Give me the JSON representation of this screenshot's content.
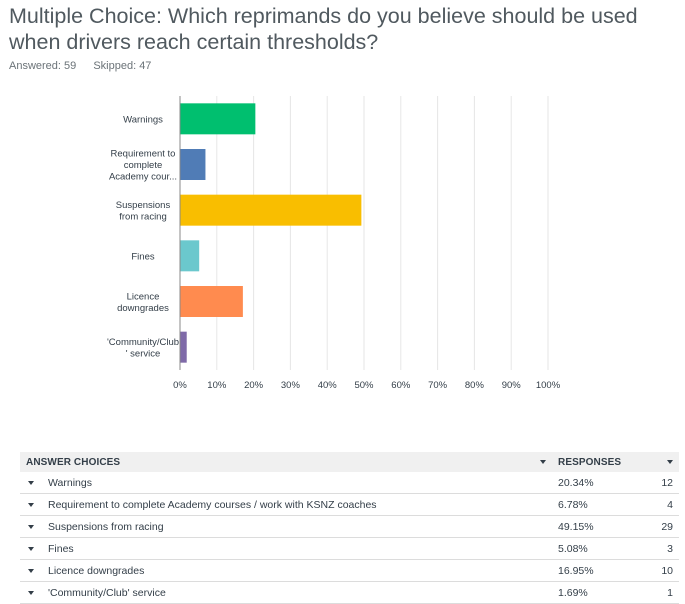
{
  "question": {
    "title": "Multiple Choice: Which reprimands do you believe should be used when drivers reach certain thresholds?",
    "answered": "Answered: 59",
    "skipped": "Skipped: 47"
  },
  "chart_data": {
    "type": "bar",
    "orientation": "horizontal",
    "categories": [
      [
        "Warnings"
      ],
      [
        "Requirement to",
        "complete",
        "Academy cour..."
      ],
      [
        "Suspensions",
        "from racing"
      ],
      [
        "Fines"
      ],
      [
        "Licence",
        "downgrades"
      ],
      [
        "'Community/Club",
        "' service"
      ]
    ],
    "values": [
      20.34,
      6.78,
      49.15,
      5.08,
      16.95,
      1.69
    ],
    "colors": [
      "#00bf6f",
      "#507cb6",
      "#f9be00",
      "#6bc8cd",
      "#ff8b4f",
      "#7f6aa8"
    ],
    "xlim": [
      0,
      100
    ],
    "xticks": [
      "0%",
      "10%",
      "20%",
      "30%",
      "40%",
      "50%",
      "60%",
      "70%",
      "80%",
      "90%",
      "100%"
    ],
    "grid": true
  },
  "table": {
    "header_choice": "ANSWER CHOICES",
    "header_responses": "RESPONSES",
    "rows": [
      {
        "choice": "Warnings",
        "pct": "20.34%",
        "count": "12"
      },
      {
        "choice": "Requirement to complete Academy courses / work with KSNZ coaches",
        "pct": "6.78%",
        "count": "4"
      },
      {
        "choice": "Suspensions from racing",
        "pct": "49.15%",
        "count": "29"
      },
      {
        "choice": "Fines",
        "pct": "5.08%",
        "count": "3"
      },
      {
        "choice": "Licence downgrades",
        "pct": "16.95%",
        "count": "10"
      },
      {
        "choice": "'Community/Club' service",
        "pct": "1.69%",
        "count": "1"
      }
    ]
  }
}
